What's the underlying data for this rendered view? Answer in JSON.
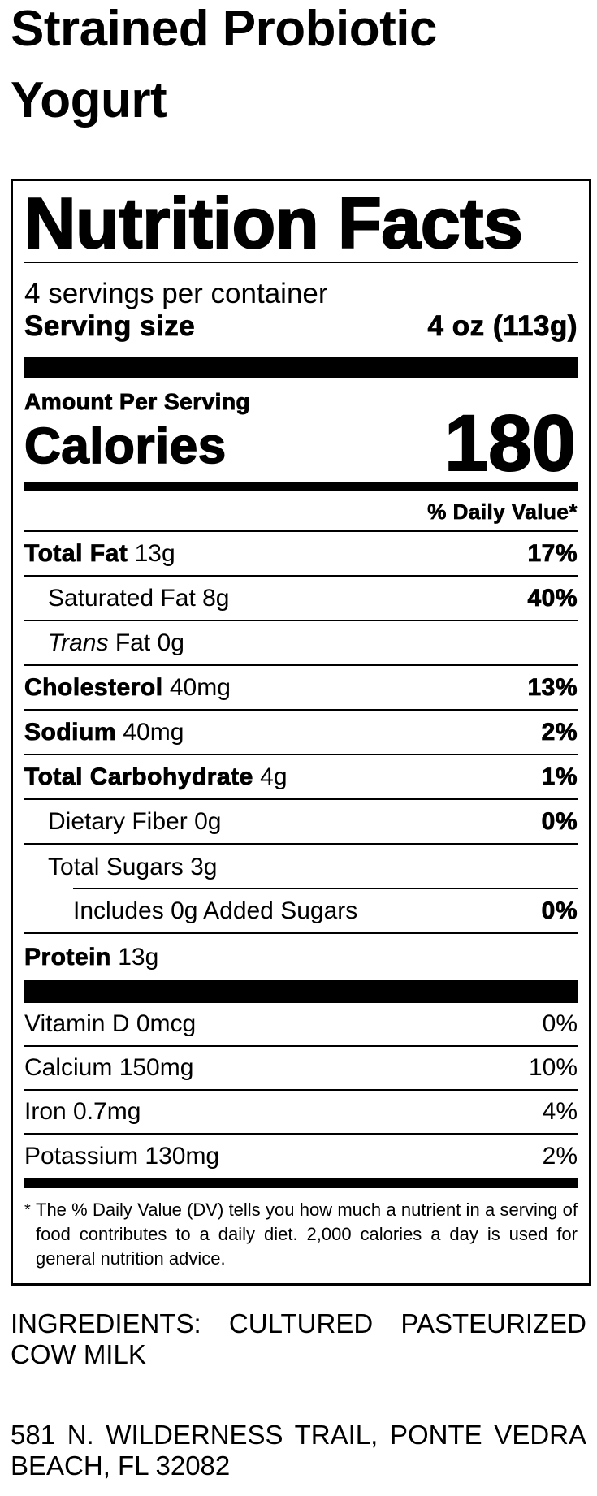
{
  "product": {
    "title": "Strained Probiotic Yogurt"
  },
  "label": {
    "heading": "Nutrition Facts",
    "servings_per_container": "4 servings per container",
    "serving_size_label": "Serving size",
    "serving_size_value": "4 oz (113g)",
    "amount_per_serving": "Amount Per Serving",
    "calories_label": "Calories",
    "calories_value": "180",
    "daily_value_header": "% Daily Value*",
    "nutrients": [
      {
        "name": "Total Fat",
        "amount": "13g",
        "dv": "17%"
      },
      {
        "name": "Saturated Fat",
        "amount": "8g",
        "dv": "40%"
      },
      {
        "name_italic": "Trans",
        "name": "Fat",
        "amount": "0g",
        "dv": ""
      },
      {
        "name": "Cholesterol",
        "amount": "40mg",
        "dv": "13%"
      },
      {
        "name": "Sodium",
        "amount": "40mg",
        "dv": "2%"
      },
      {
        "name": "Total Carbohydrate",
        "amount": "4g",
        "dv": "1%"
      },
      {
        "name": "Dietary Fiber",
        "amount": "0g",
        "dv": "0%"
      },
      {
        "name": "Total Sugars",
        "amount": "3g",
        "dv": ""
      },
      {
        "text": "Includes 0g Added Sugars",
        "dv": "0%"
      },
      {
        "name": "Protein",
        "amount": "13g"
      }
    ],
    "vitamins": [
      {
        "text": "Vitamin D 0mcg",
        "dv": "0%"
      },
      {
        "text": "Calcium 150mg",
        "dv": "10%"
      },
      {
        "text": "Iron 0.7mg",
        "dv": "4%"
      },
      {
        "text": "Potassium 130mg",
        "dv": "2%"
      }
    ],
    "footnote_marker": "*",
    "footnote": "The % Daily Value (DV) tells you how much a nutrient in a serving of food contributes to a daily diet. 2,000 calories a day is used for general nutrition advice."
  },
  "ingredients": "INGREDIENTS: CULTURED PASTEURIZED COW MILK",
  "address": "581 N. WILDERNESS TRAIL, PONTE VEDRA BEACH, FL 32082"
}
